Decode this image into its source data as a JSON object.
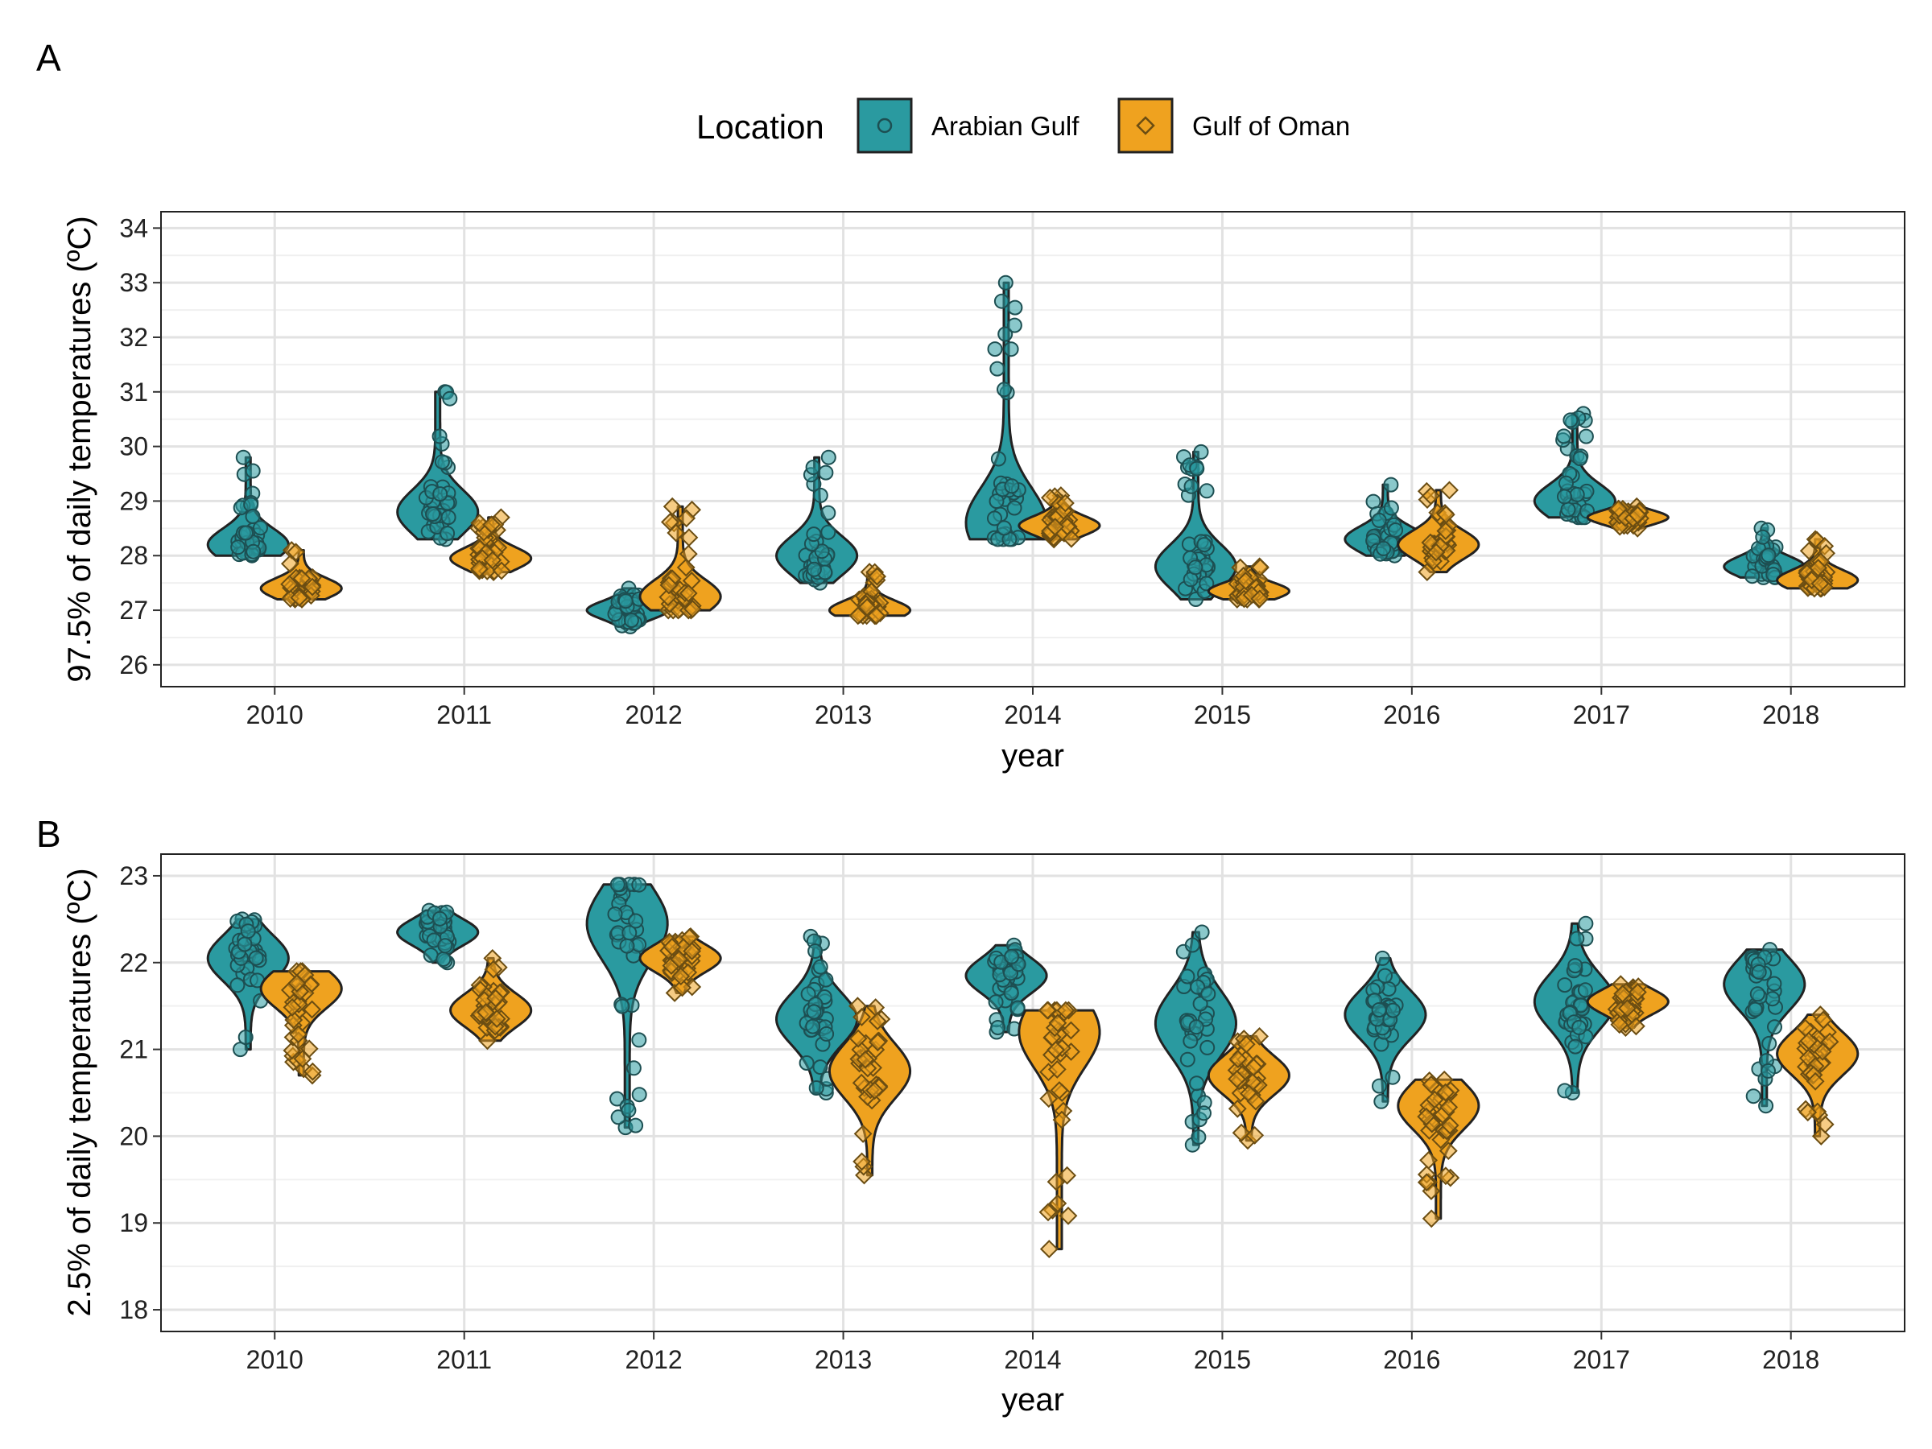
{
  "legend": {
    "title": "Location",
    "items": [
      {
        "label": "Arabian Gulf",
        "color": "#2a9aa0",
        "shape": "circle"
      },
      {
        "label": "Gulf of Oman",
        "color": "#efa21f",
        "shape": "diamond"
      }
    ]
  },
  "chart_data": [
    {
      "type": "violin",
      "panel_label": "A",
      "xlabel": "year",
      "ylabel": "97.5% of daily temperatures (ºC)",
      "categories": [
        "2010",
        "2011",
        "2012",
        "2013",
        "2014",
        "2015",
        "2016",
        "2017",
        "2018"
      ],
      "ylim": [
        25.6,
        34.3
      ],
      "yticks": [
        26,
        27,
        28,
        29,
        30,
        31,
        32,
        33,
        34
      ],
      "grid": true,
      "series": [
        {
          "name": "Arabian Gulf",
          "color": "#2a9aa0",
          "marker": "circle",
          "groups": [
            {
              "min": 28.0,
              "max": 29.8,
              "mode": 28.2
            },
            {
              "min": 28.3,
              "max": 31.0,
              "mode": 28.8
            },
            {
              "min": 26.7,
              "max": 27.4,
              "mode": 27.0
            },
            {
              "min": 27.5,
              "max": 29.8,
              "mode": 28.0
            },
            {
              "min": 28.3,
              "max": 33.0,
              "mode": 28.6
            },
            {
              "min": 27.2,
              "max": 29.9,
              "mode": 27.8
            },
            {
              "min": 28.0,
              "max": 29.3,
              "mode": 28.3
            },
            {
              "min": 28.7,
              "max": 30.6,
              "mode": 29.0
            },
            {
              "min": 27.6,
              "max": 28.5,
              "mode": 27.8
            }
          ]
        },
        {
          "name": "Gulf of Oman",
          "color": "#efa21f",
          "marker": "diamond",
          "groups": [
            {
              "min": 27.2,
              "max": 28.1,
              "mode": 27.4
            },
            {
              "min": 27.7,
              "max": 28.7,
              "mode": 27.95
            },
            {
              "min": 27.0,
              "max": 28.9,
              "mode": 27.25
            },
            {
              "min": 26.9,
              "max": 27.7,
              "mode": 27.0
            },
            {
              "min": 28.3,
              "max": 29.1,
              "mode": 28.55
            },
            {
              "min": 27.2,
              "max": 27.8,
              "mode": 27.35
            },
            {
              "min": 27.7,
              "max": 29.2,
              "mode": 28.2
            },
            {
              "min": 28.5,
              "max": 28.9,
              "mode": 28.7
            },
            {
              "min": 27.4,
              "max": 28.3,
              "mode": 27.55
            }
          ]
        }
      ]
    },
    {
      "type": "violin",
      "panel_label": "B",
      "xlabel": "year",
      "ylabel": "2.5% of daily temperatures (ºC)",
      "categories": [
        "2010",
        "2011",
        "2012",
        "2013",
        "2014",
        "2015",
        "2016",
        "2017",
        "2018"
      ],
      "ylim": [
        17.75,
        23.25
      ],
      "yticks": [
        18,
        19,
        20,
        21,
        22,
        23
      ],
      "grid": true,
      "series": [
        {
          "name": "Arabian Gulf",
          "color": "#2a9aa0",
          "marker": "circle",
          "groups": [
            {
              "min": 21.0,
              "max": 22.5,
              "mode": 22.05
            },
            {
              "min": 22.0,
              "max": 22.6,
              "mode": 22.35
            },
            {
              "min": 20.1,
              "max": 22.9,
              "mode": 22.45
            },
            {
              "min": 20.5,
              "max": 22.3,
              "mode": 21.35
            },
            {
              "min": 21.2,
              "max": 22.2,
              "mode": 21.85
            },
            {
              "min": 19.9,
              "max": 22.35,
              "mode": 21.3
            },
            {
              "min": 20.4,
              "max": 22.05,
              "mode": 21.4
            },
            {
              "min": 20.5,
              "max": 22.45,
              "mode": 21.55
            },
            {
              "min": 20.35,
              "max": 22.15,
              "mode": 21.75
            }
          ]
        },
        {
          "name": "Gulf of Oman",
          "color": "#efa21f",
          "marker": "diamond",
          "groups": [
            {
              "min": 20.7,
              "max": 21.9,
              "mode": 21.7
            },
            {
              "min": 21.1,
              "max": 22.05,
              "mode": 21.45
            },
            {
              "min": 21.65,
              "max": 22.3,
              "mode": 22.05
            },
            {
              "min": 19.55,
              "max": 21.5,
              "mode": 20.75
            },
            {
              "min": 18.7,
              "max": 21.45,
              "mode": 21.2
            },
            {
              "min": 19.95,
              "max": 21.15,
              "mode": 20.7
            },
            {
              "min": 19.05,
              "max": 20.65,
              "mode": 20.35
            },
            {
              "min": 21.25,
              "max": 21.75,
              "mode": 21.55
            },
            {
              "min": 20.0,
              "max": 21.4,
              "mode": 20.95
            }
          ]
        }
      ]
    }
  ]
}
